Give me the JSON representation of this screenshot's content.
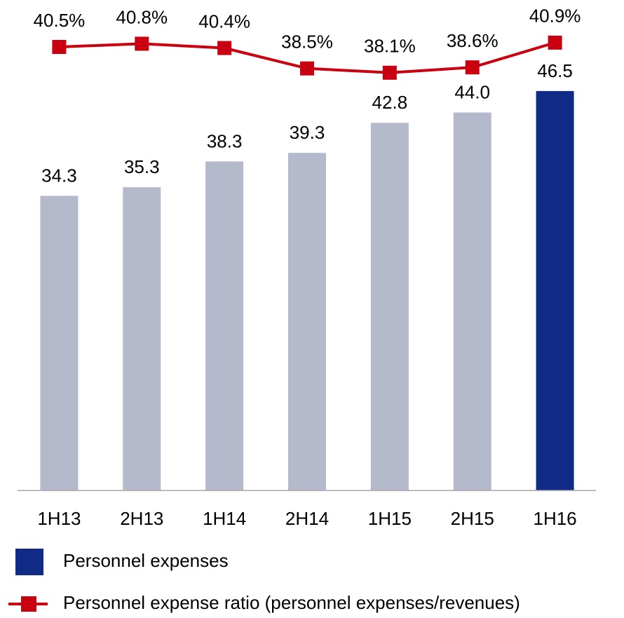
{
  "chart_data": {
    "type": "bar",
    "categories": [
      "1H13",
      "2H13",
      "1H14",
      "2H14",
      "1H15",
      "2H15",
      "1H16"
    ],
    "series": [
      {
        "name": "Personnel expenses",
        "type": "bar",
        "color": "#0f2b85",
        "colors": [
          "#b4b9cc",
          "#b4b9cc",
          "#b4b9cc",
          "#b4b9cc",
          "#b4b9cc",
          "#b4b9cc",
          "#0f2b85"
        ],
        "values": [
          34.3,
          35.3,
          38.3,
          39.3,
          42.8,
          44.0,
          46.5
        ],
        "value_labels": [
          "34.3",
          "35.3",
          "38.3",
          "39.3",
          "42.8",
          "44.0",
          "46.5"
        ]
      },
      {
        "name": "Personnel expense ratio (personnel expenses/revenues)",
        "type": "line",
        "axis": "y2",
        "color": "#c8000f",
        "values": [
          40.5,
          40.8,
          40.4,
          38.5,
          38.1,
          38.6,
          40.9
        ],
        "value_labels": [
          "40.5%",
          "40.8%",
          "40.4%",
          "38.5%",
          "38.1%",
          "38.6%",
          "40.9%"
        ]
      }
    ],
    "ylim": [
      0,
      50
    ],
    "y2lim": [
      36,
      42
    ],
    "legend": "bottom"
  }
}
